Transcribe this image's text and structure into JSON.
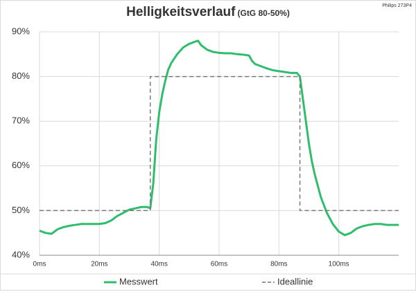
{
  "chart_data": {
    "type": "line",
    "title": "Helligkeitsverlauf",
    "subtitle": "(GtG 80-50%)",
    "annotation": "Philips 273P4",
    "xlim": [
      0,
      120
    ],
    "xticks": [
      {
        "value": 0,
        "label": "0ms"
      },
      {
        "value": 20,
        "label": "20ms"
      },
      {
        "value": 40,
        "label": "40ms"
      },
      {
        "value": 60,
        "label": "60ms"
      },
      {
        "value": 80,
        "label": "80ms"
      },
      {
        "value": 100,
        "label": "100ms"
      }
    ],
    "ylim": [
      40,
      90
    ],
    "yticks": [
      {
        "value": 40,
        "label": "40%"
      },
      {
        "value": 50,
        "label": "50%"
      },
      {
        "value": 60,
        "label": "60%"
      },
      {
        "value": 70,
        "label": "70%"
      },
      {
        "value": 80,
        "label": "80%"
      },
      {
        "value": 90,
        "label": "90%"
      }
    ],
    "grid": true,
    "legend": "bottom",
    "series": [
      {
        "name": "Messwert",
        "color": "#2ebd6b",
        "line_style": "solid",
        "x": [
          0,
          2,
          4,
          6,
          8,
          10,
          12,
          14,
          16,
          18,
          20,
          22,
          24,
          26,
          28,
          30,
          32,
          34,
          36,
          37,
          38,
          39,
          40,
          41,
          42,
          43,
          44,
          46,
          48,
          50,
          52,
          53,
          54,
          56,
          58,
          60,
          62,
          64,
          66,
          68,
          70,
          71,
          72,
          74,
          76,
          78,
          80,
          82,
          84,
          86,
          87,
          88,
          89,
          90,
          91,
          92,
          93,
          94,
          96,
          98,
          100,
          102,
          104,
          106,
          108,
          110,
          112,
          114,
          116,
          118,
          120
        ],
        "values": [
          45.5,
          45,
          44.8,
          45.8,
          46.3,
          46.6,
          46.8,
          47,
          47,
          47,
          47,
          47.2,
          47.8,
          48.8,
          49.5,
          50.2,
          50.5,
          50.8,
          50.8,
          50.5,
          56,
          66,
          72,
          76,
          79,
          81.5,
          83,
          85,
          86.5,
          87.3,
          87.8,
          88,
          87,
          86,
          85.5,
          85.3,
          85.2,
          85.2,
          85,
          84.9,
          84.7,
          83.5,
          82.8,
          82.3,
          81.8,
          81.4,
          81.2,
          81,
          80.8,
          80.8,
          80,
          75,
          70,
          65,
          61,
          58,
          55.5,
          53,
          49.5,
          47,
          45.3,
          44.5,
          45,
          46,
          46.5,
          46.8,
          47,
          47,
          46.8,
          46.8,
          46.8
        ]
      },
      {
        "name": "Ideallinie",
        "color": "#777777",
        "line_style": "dashed",
        "x": [
          0,
          37,
          37,
          87,
          87,
          120
        ],
        "values": [
          50,
          50,
          80,
          80,
          50,
          50
        ]
      }
    ]
  }
}
